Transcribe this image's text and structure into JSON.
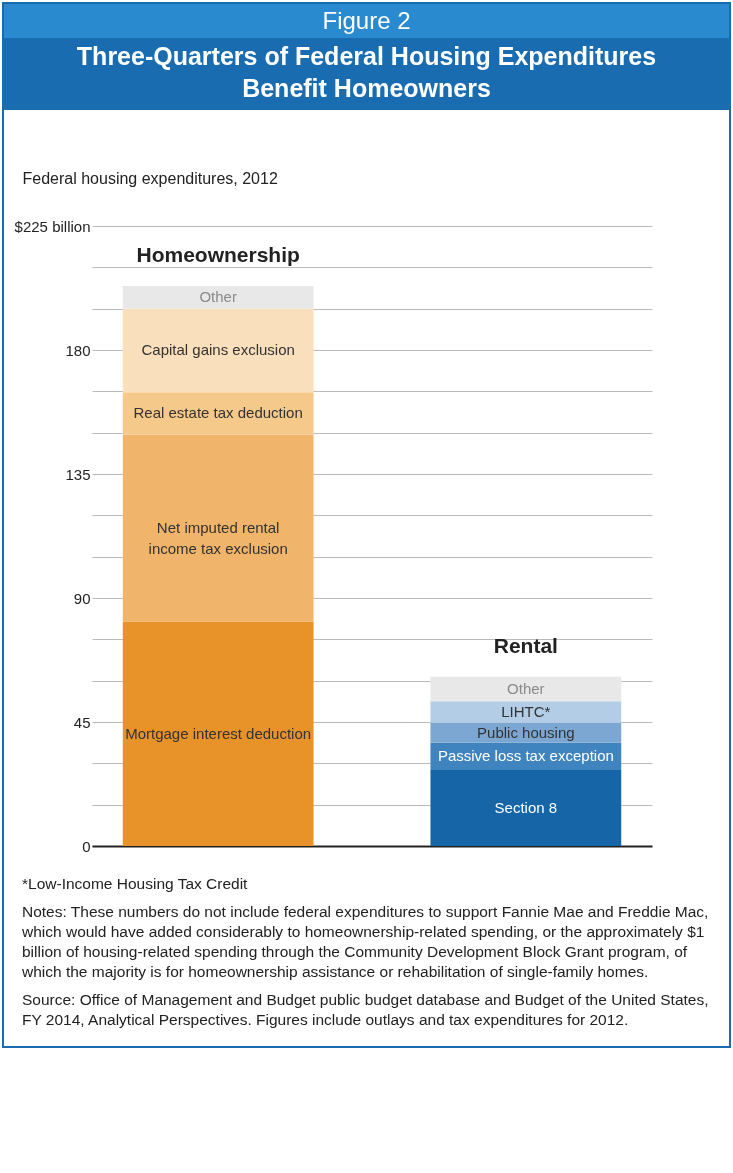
{
  "chart_data": {
    "type": "bar",
    "subtitle": "Figure 2",
    "title": "Three-Quarters of Federal Housing Expenditures Benefit Homeowners",
    "ylabel": "Federal housing expenditures, 2012",
    "categories": [
      "Homeownership",
      "Rental"
    ],
    "stacked": true,
    "legend": false,
    "grid": "y",
    "ylim": [
      0,
      225
    ],
    "yticks": [
      0,
      {
        "value": 15,
        "label": null
      },
      {
        "value": 30,
        "label": null
      },
      45,
      {
        "value": 60,
        "label": null
      },
      {
        "value": 75,
        "label": null
      },
      90,
      {
        "value": 105,
        "label": null
      },
      {
        "value": 120,
        "label": null
      },
      135,
      {
        "value": 150,
        "label": null
      },
      {
        "value": 165,
        "label": null
      },
      180,
      {
        "value": 195,
        "label": null
      },
      {
        "value": 210,
        "label": null
      },
      {
        "value": 225,
        "label": "$225 billion"
      }
    ],
    "series": [
      {
        "name": "Mortgage interest deduction",
        "color": "#e8922a",
        "values": [
          81.5,
          null
        ]
      },
      {
        "name": "Net imputed rental income tax exclusion",
        "color": "#f0b46a",
        "values": [
          67.8,
          null
        ]
      },
      {
        "name": "Real estate tax deduction",
        "color": "#f5c98a",
        "values": [
          15.4,
          null
        ]
      },
      {
        "name": "Capital gains exclusion",
        "color": "#f9dfbc",
        "values": [
          30.3,
          null
        ]
      },
      {
        "name": "Other",
        "color": "#e8e8e8",
        "values": [
          8.2,
          null
        ]
      },
      {
        "name": "Section 8",
        "color": "#1565a7",
        "values": [
          null,
          27.6
        ]
      },
      {
        "name": "Passive loss tax exception",
        "color": "#3f84bf",
        "values": [
          null,
          9.9
        ]
      },
      {
        "name": "Public housing",
        "color": "#7ba7d2",
        "values": [
          null,
          7.2
        ]
      },
      {
        "name": "LIHTC*",
        "color": "#b3cde6",
        "values": [
          null,
          7.8
        ]
      },
      {
        "name": "Other",
        "color": "#e8e8e8",
        "values": [
          null,
          8.9
        ]
      }
    ],
    "annotations": [
      "*Low-Income Housing Tax Credit",
      "Notes: These numbers do not include federal expenditures to support Fannie Mae and Freddie Mac, which would have added considerably to homeownership-related spending, or the approximately $1 billion of housing-related spending through the Community Development Block Grant program, of which the majority is for homeownership assistance or rehabilitation of single-family homes.",
      "Source: Office of Management and Budget public budget database and Budget of the United States, FY 2014, Analytical Perspectives. Figures include outlays and tax expenditures for 2012."
    ]
  }
}
